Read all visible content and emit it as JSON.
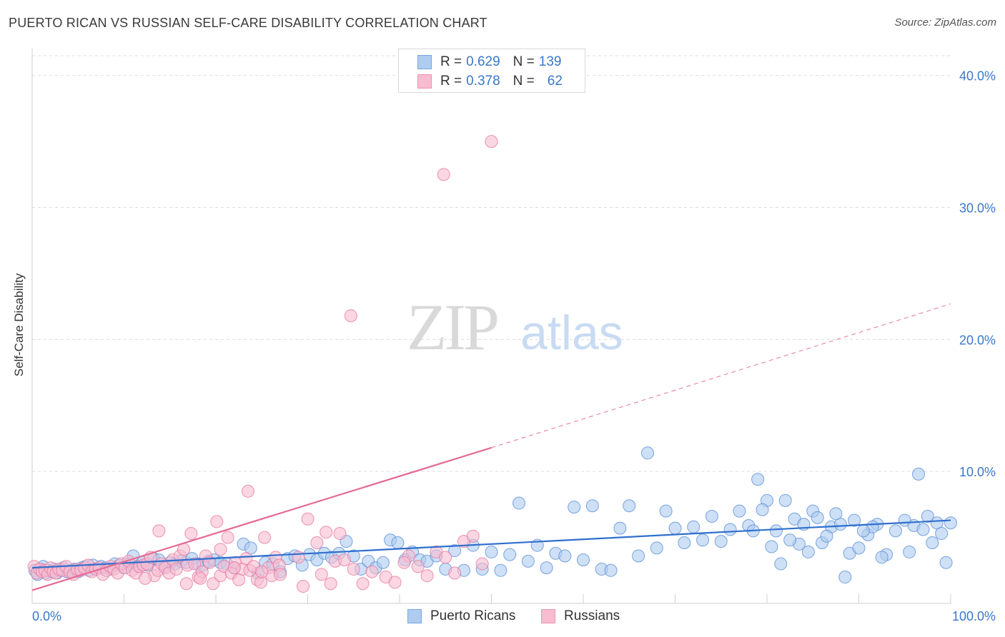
{
  "header": {
    "title": "PUERTO RICAN VS RUSSIAN SELF-CARE DISABILITY CORRELATION CHART",
    "source": "Source: ZipAtlas.com"
  },
  "watermark": {
    "zip": "ZIP",
    "atlas": "atlas"
  },
  "legend": {
    "rows": [
      {
        "r_label": "R = ",
        "r_value": "0.629",
        "n_label": "N = ",
        "n_value": "139",
        "color": "#aecbf0"
      },
      {
        "r_label": "R = ",
        "r_value": "0.378",
        "n_label": "N = ",
        "n_value": "62",
        "color": "#f7bcd0"
      }
    ]
  },
  "bottom_legend": [
    {
      "label": "Puerto Ricans",
      "color": "#aecbf0"
    },
    {
      "label": "Russians",
      "color": "#f7bcd0"
    }
  ],
  "chart_data": {
    "type": "scatter",
    "title": "PUERTO RICAN VS RUSSIAN SELF-CARE DISABILITY CORRELATION CHART",
    "xlabel": "",
    "ylabel": "Self-Care Disability",
    "xlim": [
      0,
      100
    ],
    "ylim": [
      0,
      41.5
    ],
    "x_tick_labels": [
      "0.0%",
      "100.0%"
    ],
    "y_ticks": [
      10,
      20,
      30,
      40
    ],
    "y_tick_labels": [
      "10.0%",
      "20.0%",
      "30.0%",
      "40.0%"
    ],
    "grid": true,
    "series": [
      {
        "name": "Puerto Ricans",
        "color": "#5b8fd6",
        "fill": "#aecbf0",
        "trend": {
          "x0": 0,
          "y0": 2.7,
          "x1": 100,
          "y1": 6.3,
          "dashed_to": null
        },
        "points": [
          [
            0.3,
            2.5
          ],
          [
            0.6,
            2.2
          ],
          [
            0.9,
            2.6
          ],
          [
            1.2,
            2.8
          ],
          [
            1.5,
            2.3
          ],
          [
            1.8,
            2.5
          ],
          [
            2.1,
            2.4
          ],
          [
            2.4,
            2.6
          ],
          [
            2.7,
            2.3
          ],
          [
            3.0,
            2.5
          ],
          [
            3.4,
            2.7
          ],
          [
            3.8,
            2.4
          ],
          [
            4.2,
            2.5
          ],
          [
            4.6,
            2.6
          ],
          [
            5.0,
            2.4
          ],
          [
            5.4,
            2.7
          ],
          [
            5.8,
            2.8
          ],
          [
            6.2,
            2.5
          ],
          [
            6.6,
            2.9
          ],
          [
            7.0,
            2.6
          ],
          [
            7.5,
            2.8
          ],
          [
            8.0,
            2.7
          ],
          [
            8.5,
            2.6
          ],
          [
            9.0,
            3.0
          ],
          [
            9.5,
            2.9
          ],
          [
            10.0,
            2.7
          ],
          [
            10.5,
            3.0
          ],
          [
            11.0,
            3.6
          ],
          [
            11.5,
            2.8
          ],
          [
            12.0,
            3.1
          ],
          [
            12.6,
            2.9
          ],
          [
            13.2,
            3.4
          ],
          [
            13.8,
            3.3
          ],
          [
            14.4,
            2.8
          ],
          [
            15.0,
            3.1
          ],
          [
            15.6,
            3.0
          ],
          [
            16.2,
            3.2
          ],
          [
            16.8,
            3.1
          ],
          [
            17.4,
            3.4
          ],
          [
            18.0,
            3.0
          ],
          [
            18.6,
            2.9
          ],
          [
            19.2,
            3.2
          ],
          [
            19.8,
            3.3
          ],
          [
            20.5,
            3.1
          ],
          [
            21.2,
            3.0
          ],
          [
            22.0,
            2.7
          ],
          [
            23.0,
            4.5
          ],
          [
            23.8,
            4.2
          ],
          [
            24.6,
            2.3
          ],
          [
            25.4,
            3.1
          ],
          [
            26.2,
            3.0
          ],
          [
            27.0,
            2.4
          ],
          [
            27.8,
            3.4
          ],
          [
            28.6,
            3.6
          ],
          [
            29.4,
            2.9
          ],
          [
            30.2,
            3.7
          ],
          [
            31.0,
            3.3
          ],
          [
            31.8,
            3.8
          ],
          [
            32.6,
            3.5
          ],
          [
            33.4,
            3.8
          ],
          [
            34.2,
            4.7
          ],
          [
            35.0,
            3.6
          ],
          [
            35.8,
            2.6
          ],
          [
            36.6,
            3.2
          ],
          [
            37.4,
            2.7
          ],
          [
            38.2,
            3.1
          ],
          [
            39.0,
            4.8
          ],
          [
            39.8,
            4.6
          ],
          [
            40.6,
            3.3
          ],
          [
            41.4,
            3.9
          ],
          [
            42.2,
            3.3
          ],
          [
            43.0,
            3.2
          ],
          [
            44.0,
            3.6
          ],
          [
            45.0,
            2.6
          ],
          [
            46.0,
            4.0
          ],
          [
            47.0,
            2.5
          ],
          [
            48.0,
            4.4
          ],
          [
            49.0,
            2.6
          ],
          [
            50.0,
            3.9
          ],
          [
            51.0,
            2.5
          ],
          [
            52.0,
            3.7
          ],
          [
            53.0,
            7.6
          ],
          [
            54.0,
            3.2
          ],
          [
            55.0,
            4.4
          ],
          [
            56.0,
            2.7
          ],
          [
            57.0,
            3.8
          ],
          [
            58.0,
            3.6
          ],
          [
            59.0,
            7.3
          ],
          [
            60.0,
            3.3
          ],
          [
            61.0,
            7.4
          ],
          [
            62.0,
            2.6
          ],
          [
            63.0,
            2.5
          ],
          [
            64.0,
            5.7
          ],
          [
            65.0,
            7.4
          ],
          [
            66.0,
            3.6
          ],
          [
            67.0,
            11.4
          ],
          [
            68.0,
            4.2
          ],
          [
            69.0,
            7.0
          ],
          [
            70.0,
            5.7
          ],
          [
            71.0,
            4.6
          ],
          [
            72.0,
            5.8
          ],
          [
            73.0,
            4.8
          ],
          [
            74.0,
            6.6
          ],
          [
            75.0,
            4.7
          ],
          [
            76.0,
            5.6
          ],
          [
            77.0,
            7.0
          ],
          [
            78.0,
            5.9
          ],
          [
            79.0,
            9.4
          ],
          [
            80.0,
            7.8
          ],
          [
            81.0,
            5.5
          ],
          [
            82.0,
            7.8
          ],
          [
            83.0,
            6.4
          ],
          [
            84.0,
            6.0
          ],
          [
            85.0,
            7.0
          ],
          [
            86.0,
            4.6
          ],
          [
            87.0,
            5.8
          ],
          [
            88.0,
            6.0
          ],
          [
            89.0,
            3.8
          ],
          [
            90.0,
            4.2
          ],
          [
            91.0,
            5.2
          ],
          [
            92.0,
            6.0
          ],
          [
            93.0,
            3.7
          ],
          [
            94.0,
            5.5
          ],
          [
            95.0,
            6.3
          ],
          [
            96.0,
            5.9
          ],
          [
            96.5,
            9.8
          ],
          [
            97.0,
            5.6
          ],
          [
            97.5,
            6.6
          ],
          [
            98.0,
            4.6
          ],
          [
            98.5,
            6.1
          ],
          [
            99.0,
            5.3
          ],
          [
            99.5,
            3.1
          ],
          [
            100.0,
            6.1
          ],
          [
            95.5,
            3.9
          ],
          [
            92.5,
            3.5
          ],
          [
            91.5,
            5.8
          ],
          [
            90.5,
            5.5
          ],
          [
            89.5,
            6.3
          ],
          [
            88.5,
            2.0
          ],
          [
            87.5,
            6.8
          ],
          [
            86.5,
            5.1
          ],
          [
            85.5,
            6.5
          ],
          [
            84.5,
            3.9
          ],
          [
            83.5,
            4.5
          ],
          [
            82.5,
            4.8
          ],
          [
            81.5,
            3.0
          ],
          [
            80.5,
            4.3
          ],
          [
            79.5,
            7.1
          ],
          [
            78.5,
            5.5
          ]
        ]
      },
      {
        "name": "Russians",
        "color": "#e8789f",
        "fill": "#f7bcd0",
        "trend": {
          "x0": 0,
          "y0": 1.0,
          "x1": 50,
          "y1": 11.8,
          "dashed_to": [
            100,
            22.7
          ]
        },
        "points": [
          [
            0.2,
            2.8
          ],
          [
            0.5,
            2.3
          ],
          [
            0.8,
            2.6
          ],
          [
            1.1,
            2.4
          ],
          [
            1.4,
            2.5
          ],
          [
            1.7,
            2.2
          ],
          [
            2.0,
            2.7
          ],
          [
            2.3,
            2.4
          ],
          [
            2.6,
            2.3
          ],
          [
            2.9,
            2.6
          ],
          [
            3.3,
            2.5
          ],
          [
            3.7,
            2.8
          ],
          [
            4.1,
            2.4
          ],
          [
            4.5,
            2.2
          ],
          [
            4.9,
            2.6
          ],
          [
            5.3,
            2.5
          ],
          [
            5.7,
            2.7
          ],
          [
            6.1,
            2.9
          ],
          [
            6.5,
            2.4
          ],
          [
            6.9,
            2.6
          ],
          [
            7.3,
            2.7
          ],
          [
            7.7,
            2.2
          ],
          [
            8.1,
            2.5
          ],
          [
            8.5,
            2.8
          ],
          [
            8.9,
            2.6
          ],
          [
            9.3,
            2.3
          ],
          [
            9.7,
            3.0
          ],
          [
            10.1,
            2.7
          ],
          [
            10.5,
            3.2
          ],
          [
            10.9,
            2.5
          ],
          [
            11.3,
            2.3
          ],
          [
            11.7,
            2.8
          ],
          [
            12.1,
            2.9
          ],
          [
            12.5,
            3.0
          ],
          [
            12.9,
            3.5
          ],
          [
            13.3,
            2.1
          ],
          [
            13.7,
            2.5
          ],
          [
            14.1,
            3.0
          ],
          [
            14.5,
            2.7
          ],
          [
            14.9,
            2.3
          ],
          [
            15.3,
            3.3
          ],
          [
            15.7,
            2.6
          ],
          [
            16.1,
            3.6
          ],
          [
            16.5,
            4.1
          ],
          [
            16.9,
            2.9
          ],
          [
            17.3,
            5.3
          ],
          [
            17.7,
            3.0
          ],
          [
            18.1,
            2.0
          ],
          [
            18.5,
            2.4
          ],
          [
            18.9,
            3.6
          ],
          [
            19.3,
            3.1
          ],
          [
            19.7,
            1.5
          ],
          [
            20.1,
            6.2
          ],
          [
            20.5,
            2.1
          ],
          [
            20.9,
            2.8
          ],
          [
            21.3,
            5.0
          ],
          [
            21.7,
            2.3
          ],
          [
            22.1,
            3.1
          ],
          [
            22.5,
            1.8
          ],
          [
            22.9,
            2.6
          ],
          [
            23.3,
            3.4
          ],
          [
            23.7,
            2.5
          ],
          [
            24.1,
            2.8
          ],
          [
            24.5,
            1.8
          ],
          [
            24.9,
            1.6
          ],
          [
            25.3,
            5.0
          ],
          [
            25.7,
            2.7
          ],
          [
            26.1,
            2.1
          ],
          [
            26.5,
            3.5
          ],
          [
            26.9,
            2.9
          ],
          [
            20.5,
            4.1
          ],
          [
            25.0,
            2.4
          ],
          [
            30.0,
            6.4
          ],
          [
            31.0,
            4.6
          ],
          [
            31.5,
            2.2
          ],
          [
            32.0,
            5.4
          ],
          [
            32.5,
            1.5
          ],
          [
            33.0,
            3.2
          ],
          [
            34.0,
            3.3
          ],
          [
            35.0,
            2.6
          ],
          [
            18.3,
            1.9
          ],
          [
            22.0,
            2.7
          ],
          [
            29.0,
            3.5
          ],
          [
            34.7,
            21.8
          ],
          [
            37.0,
            2.4
          ],
          [
            41.0,
            3.6
          ],
          [
            42.0,
            2.8
          ],
          [
            43.0,
            2.1
          ],
          [
            44.0,
            3.9
          ],
          [
            45.0,
            3.5
          ],
          [
            47.0,
            4.7
          ],
          [
            48.0,
            5.1
          ],
          [
            49.0,
            3.0
          ],
          [
            23.5,
            8.5
          ],
          [
            27.0,
            2.2
          ],
          [
            29.5,
            1.3
          ],
          [
            33.5,
            5.3
          ],
          [
            36.0,
            1.5
          ],
          [
            38.5,
            2.0
          ],
          [
            39.5,
            1.6
          ],
          [
            40.5,
            3.1
          ],
          [
            46.0,
            2.3
          ],
          [
            44.8,
            32.5
          ],
          [
            50.0,
            35.0
          ],
          [
            16.8,
            1.5
          ],
          [
            13.8,
            5.5
          ],
          [
            12.3,
            1.9
          ]
        ]
      }
    ]
  }
}
